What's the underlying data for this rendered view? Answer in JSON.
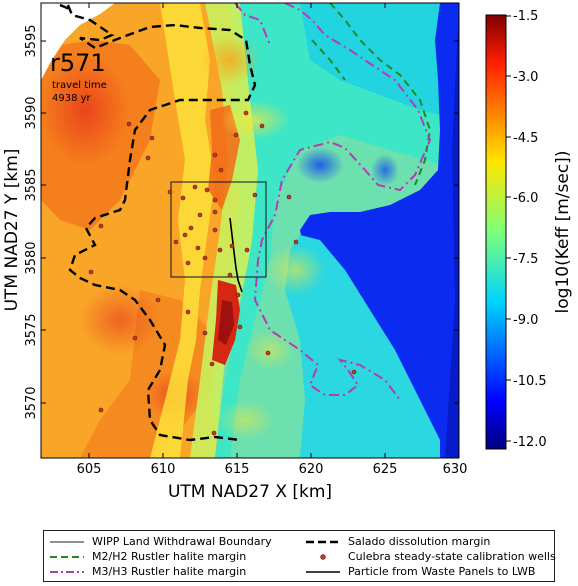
{
  "map": {
    "label": "r571",
    "travel_time_label": "travel time",
    "travel_time_value": "4938 yr",
    "xlabel": "UTM NAD27 X [km]",
    "ylabel": "UTM NAD27 Y [km]",
    "x_ticks": [
      "605",
      "610",
      "615",
      "620",
      "625",
      "630"
    ],
    "y_ticks": [
      "3595",
      "3590",
      "3585",
      "3580",
      "3575",
      "3570"
    ],
    "xlim": [
      601.5,
      630
    ],
    "ylim": [
      3566.5,
      3597.5
    ]
  },
  "colorbar": {
    "label": "log10(Keff [m/sec])",
    "ticks": [
      "-1.5",
      "-3.0",
      "-4.5",
      "-6.0",
      "-7.5",
      "-9.0",
      "-10.5",
      "-12.0"
    ],
    "range": [
      -12.3,
      -1.5
    ],
    "colormap": "jet"
  },
  "legend": {
    "items": [
      {
        "label": "WIPP Land Withdrawal Boundary",
        "style": "thin-solid",
        "color": "#222222"
      },
      {
        "label": "M2/H2 Rustler halite margin",
        "style": "dashed",
        "color": "#1f8a1f"
      },
      {
        "label": "M3/H3 Rustler halite margin",
        "style": "dash-dot",
        "color": "#b43cb4"
      },
      {
        "label": "Salado dissolution margin",
        "style": "thick-dashed",
        "color": "#000000"
      },
      {
        "label": "Culebra steady-state calibration wells",
        "style": "dot",
        "color": "#c0392b"
      },
      {
        "label": "Particle from Waste Panels to LWB",
        "style": "solid",
        "color": "#000000"
      }
    ]
  }
}
